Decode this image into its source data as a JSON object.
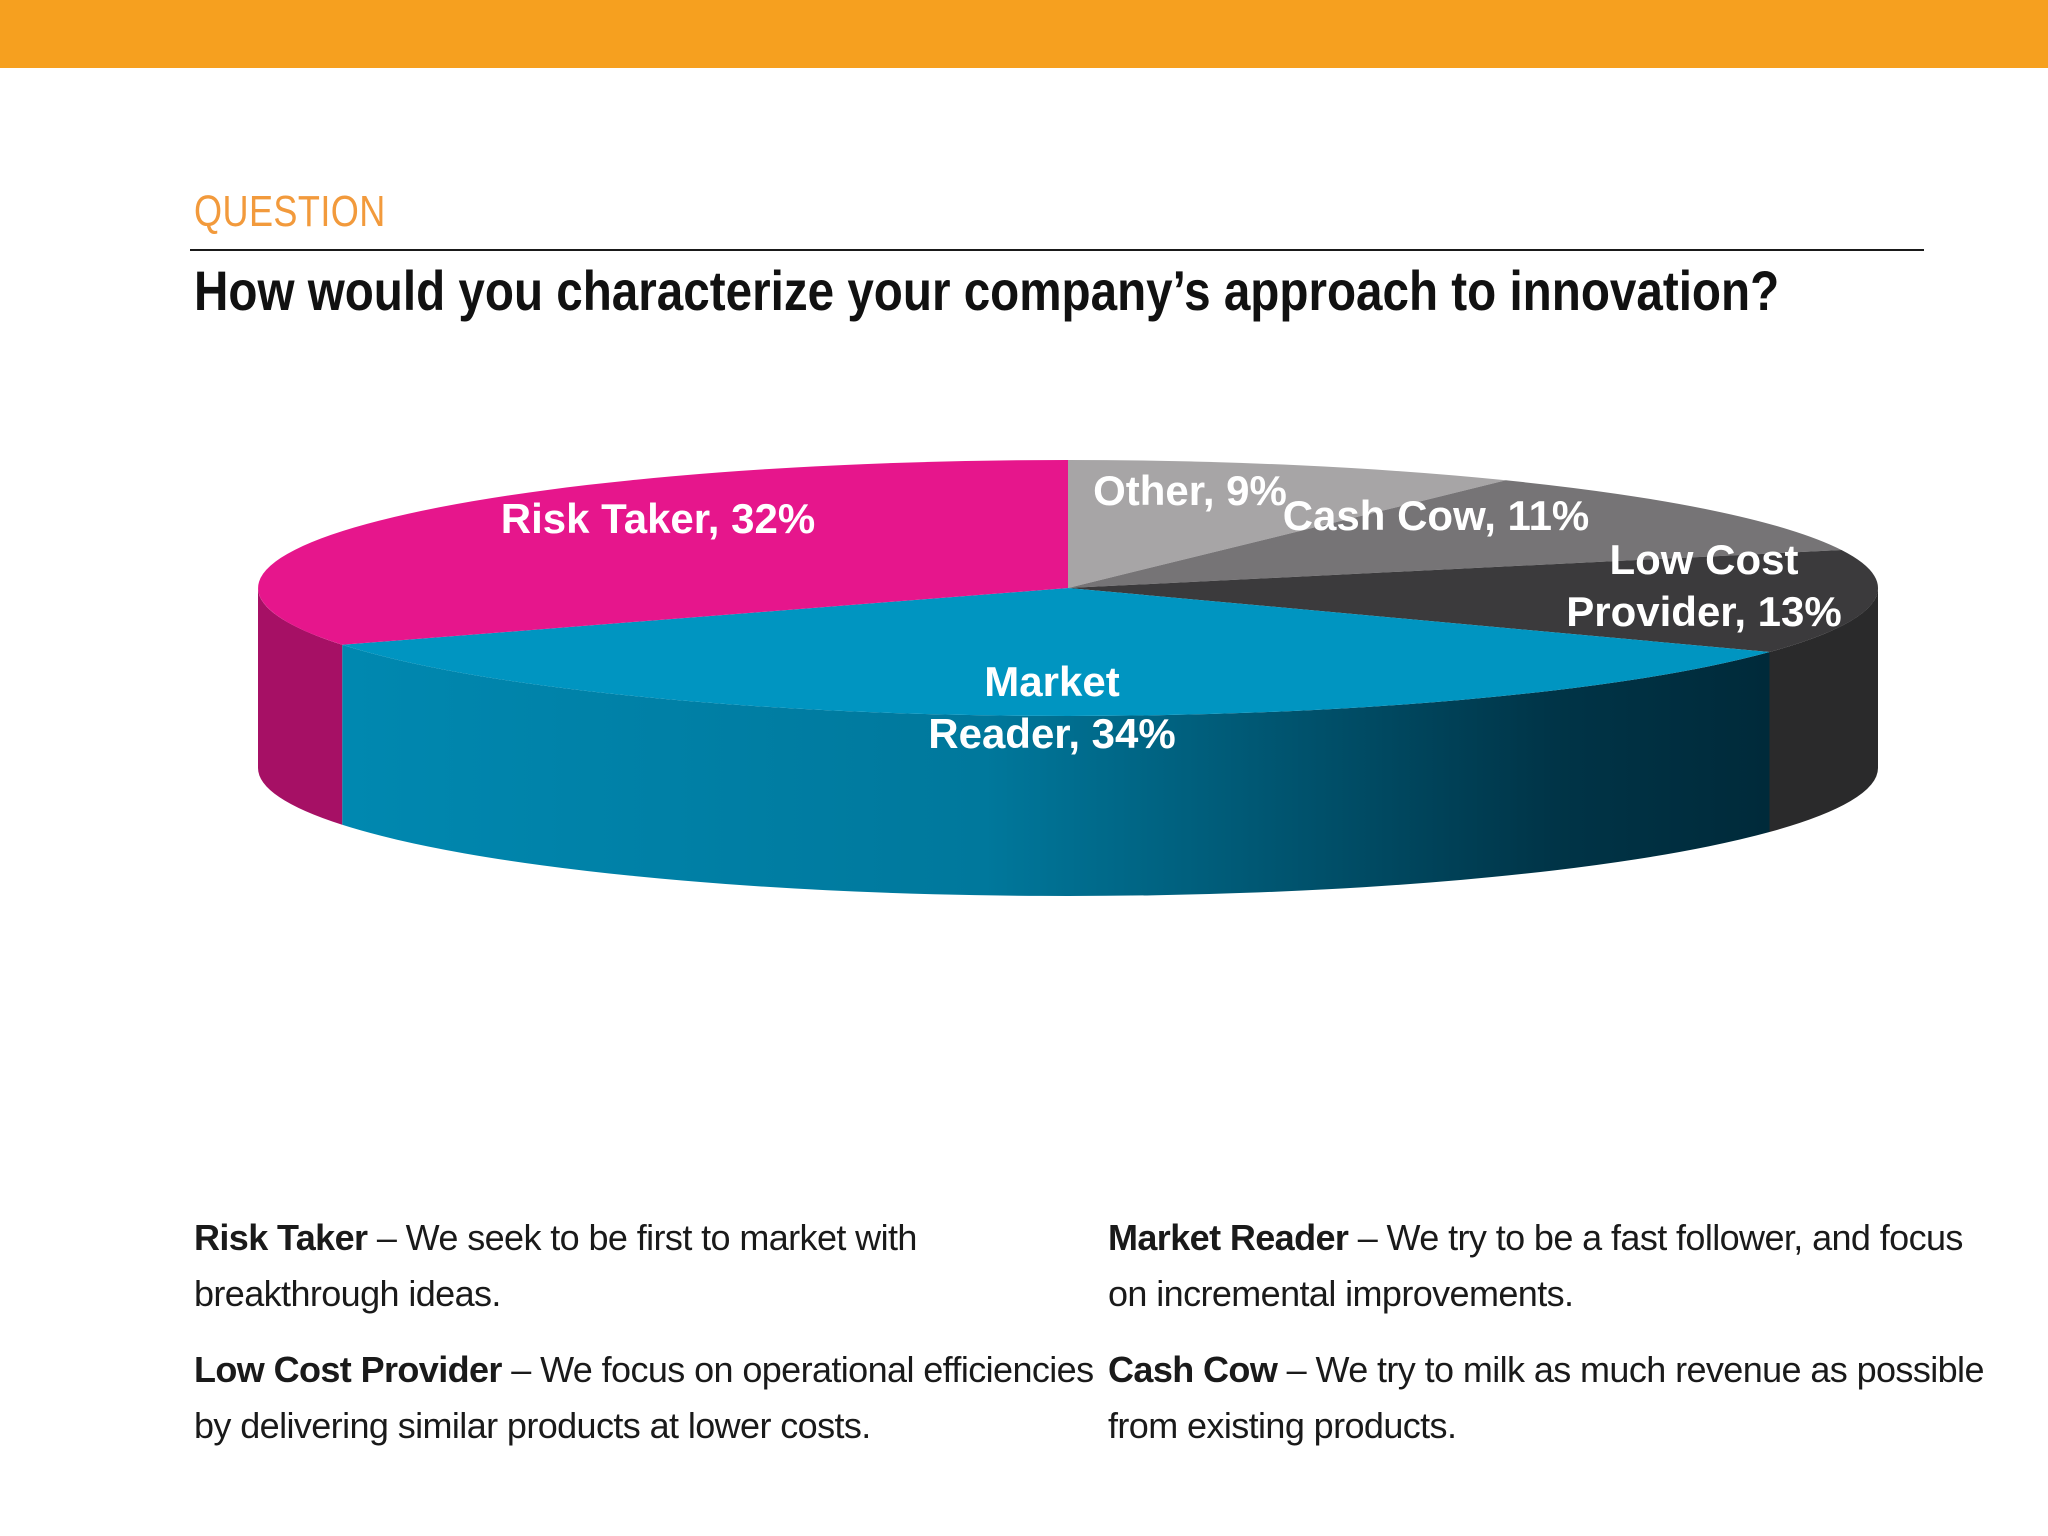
{
  "header": {
    "section_label": "QUESTION",
    "question": "How would you characterize your company’s approach to innovation?"
  },
  "chart_data": {
    "type": "pie",
    "title": "How would you characterize your company’s approach to innovation?",
    "slices": [
      {
        "name": "Other",
        "value": 9,
        "label_lines": [
          "Other, 9%"
        ],
        "color": "#a7a5a6"
      },
      {
        "name": "Cash Cow",
        "value": 11,
        "label_lines": [
          "Cash Cow, 11%"
        ],
        "color": "#767476"
      },
      {
        "name": "Low Cost Provider",
        "value": 13,
        "label_lines": [
          "Low Cost",
          "Provider, 13%"
        ],
        "color": "#3b3a3c"
      },
      {
        "name": "Market Reader",
        "value": 34,
        "label_lines": [
          "Market",
          "Reader, 34%"
        ],
        "color": "#0095c1"
      },
      {
        "name": "Risk Taker",
        "value": 32,
        "label_lines": [
          "Risk Taker, 32%"
        ],
        "color": "#e6168c"
      }
    ],
    "start": "12 o'clock, clockwise",
    "style": "3d tilted pie"
  },
  "definitions": [
    {
      "term": "Risk Taker",
      "text": " – We seek to be first to market with breakthrough ideas."
    },
    {
      "term": "Market Reader",
      "text": " – We try to be a fast follower, and focus on incremental improvements."
    },
    {
      "term": "Low Cost Provider",
      "text": " – We focus on operational efficiencies by delivering similar products at lower costs."
    },
    {
      "term": "Cash Cow",
      "text": " – We try to milk as much revenue as possible from existing products."
    }
  ]
}
